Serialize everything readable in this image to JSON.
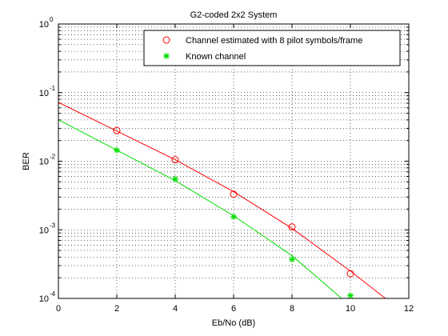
{
  "chart_data": {
    "type": "line",
    "title": "G2-coded 2x2 System",
    "xlabel": "Eb/No (dB)",
    "ylabel": "BER",
    "xlim": [
      0,
      12
    ],
    "ylim": [
      0.0001,
      1
    ],
    "yscale": "log",
    "grid": true,
    "legend_position": "top-right",
    "x_ticks": [
      0,
      2,
      4,
      6,
      8,
      10,
      12
    ],
    "y_ticks": [
      {
        "base": "10",
        "exp": "-4",
        "value": 0.0001
      },
      {
        "base": "10",
        "exp": "-3",
        "value": 0.001
      },
      {
        "base": "10",
        "exp": "-2",
        "value": 0.01
      },
      {
        "base": "10",
        "exp": "-1",
        "value": 0.1
      },
      {
        "base": "10",
        "exp": "0",
        "value": 1
      }
    ],
    "series": [
      {
        "name": "Channel estimated with 8 pilot symbols/frame",
        "color": "#ff0000",
        "marker": "circle",
        "x": [
          2,
          4,
          6,
          8,
          10
        ],
        "values": [
          0.028,
          0.0105,
          0.0033,
          0.0011,
          0.00023
        ],
        "curve_x": [
          0,
          2,
          4,
          6,
          8,
          10,
          11.2
        ],
        "curve_y": [
          0.072,
          0.0275,
          0.0105,
          0.0036,
          0.00105,
          0.00025,
          0.0001
        ]
      },
      {
        "name": "Known channel",
        "color": "#00dd00",
        "marker": "star",
        "x": [
          2,
          4,
          6,
          8,
          10
        ],
        "values": [
          0.0145,
          0.0055,
          0.00155,
          0.00037,
          0.00011
        ],
        "curve_x": [
          0,
          2,
          4,
          6,
          8,
          9.7
        ],
        "curve_y": [
          0.04,
          0.0145,
          0.0052,
          0.0016,
          0.00042,
          0.0001
        ]
      }
    ]
  }
}
